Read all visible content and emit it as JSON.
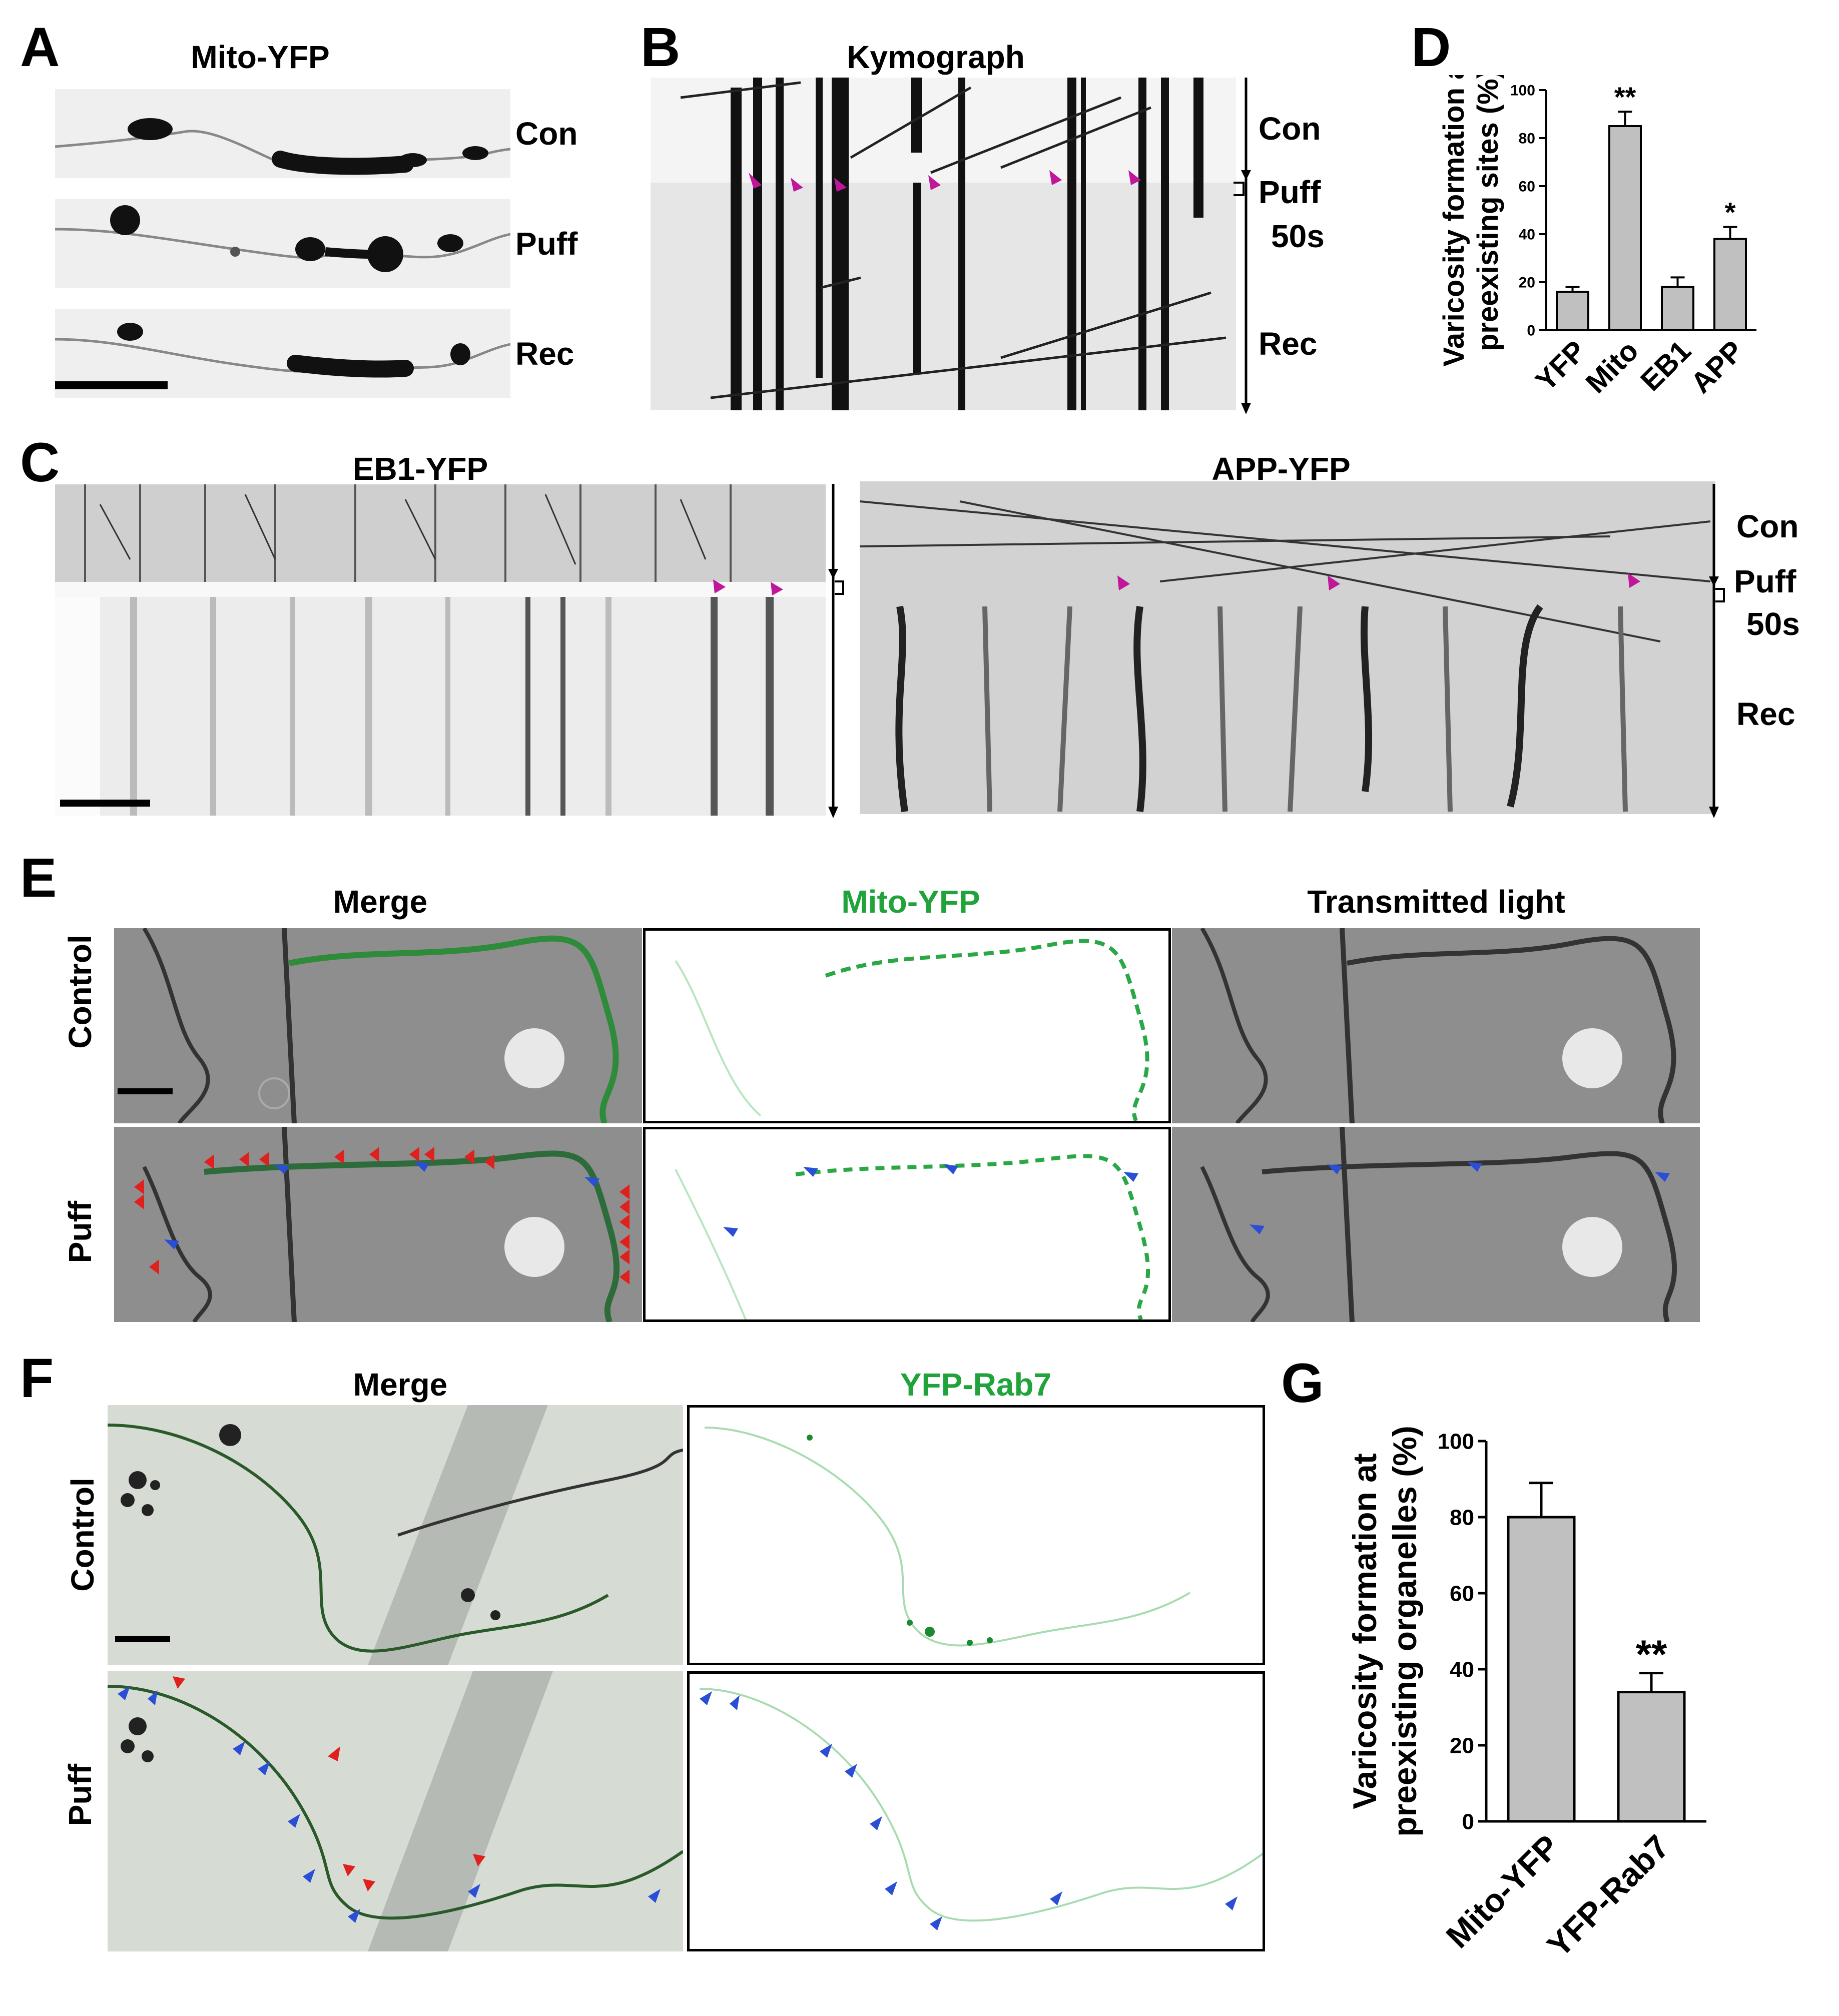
{
  "panels": {
    "A": {
      "label": "A",
      "title": "Mito-YFP",
      "rows": [
        "Con",
        "Puff",
        "Rec"
      ]
    },
    "B": {
      "label": "B",
      "title": "Kymograph",
      "phases": {
        "con": "Con",
        "puff": "Puff",
        "duration": "50s",
        "rec": "Rec"
      }
    },
    "C": {
      "label": "C",
      "left_title": "EB1-YFP",
      "right_title": "APP-YFP",
      "phases": {
        "con": "Con",
        "puff": "Puff",
        "duration": "50s",
        "rec": "Rec"
      }
    },
    "D": {
      "label": "D"
    },
    "E": {
      "label": "E",
      "col_titles": [
        "Merge",
        "Mito-YFP",
        "Transmitted light"
      ],
      "row_labels": [
        "Control",
        "Puff"
      ]
    },
    "F": {
      "label": "F",
      "col_titles": [
        "Merge",
        "YFP-Rab7"
      ],
      "row_labels": [
        "Control",
        "Puff"
      ]
    },
    "G": {
      "label": "G"
    }
  },
  "colors": {
    "marker_magenta": "#c0179a",
    "marker_red": "#e0201c",
    "marker_blue": "#2a4fd6",
    "green_label": "#1fa33a",
    "bar_fill": "#c0c0c0"
  },
  "chart_data": [
    {
      "id": "D",
      "type": "bar",
      "categories": [
        "YFP",
        "Mito",
        "EB1",
        "APP"
      ],
      "values": [
        16,
        85,
        18,
        38
      ],
      "errors": [
        2,
        6,
        4,
        5
      ],
      "significance": [
        "",
        "**",
        "",
        "*"
      ],
      "ylabel": "Varicosity formation at preexisting sites (%)",
      "ylim": [
        0,
        100
      ],
      "yticks": [
        0,
        20,
        40,
        60,
        80,
        100
      ],
      "grid": false
    },
    {
      "id": "G",
      "type": "bar",
      "categories": [
        "Mito-YFP",
        "YFP-Rab7"
      ],
      "values": [
        80,
        34
      ],
      "errors": [
        9,
        5
      ],
      "significance": [
        "",
        "**"
      ],
      "ylabel": "Varicosity formation at preexisting organelles (%)",
      "ylim": [
        0,
        100
      ],
      "yticks": [
        0,
        20,
        40,
        60,
        80,
        100
      ],
      "grid": false
    }
  ]
}
